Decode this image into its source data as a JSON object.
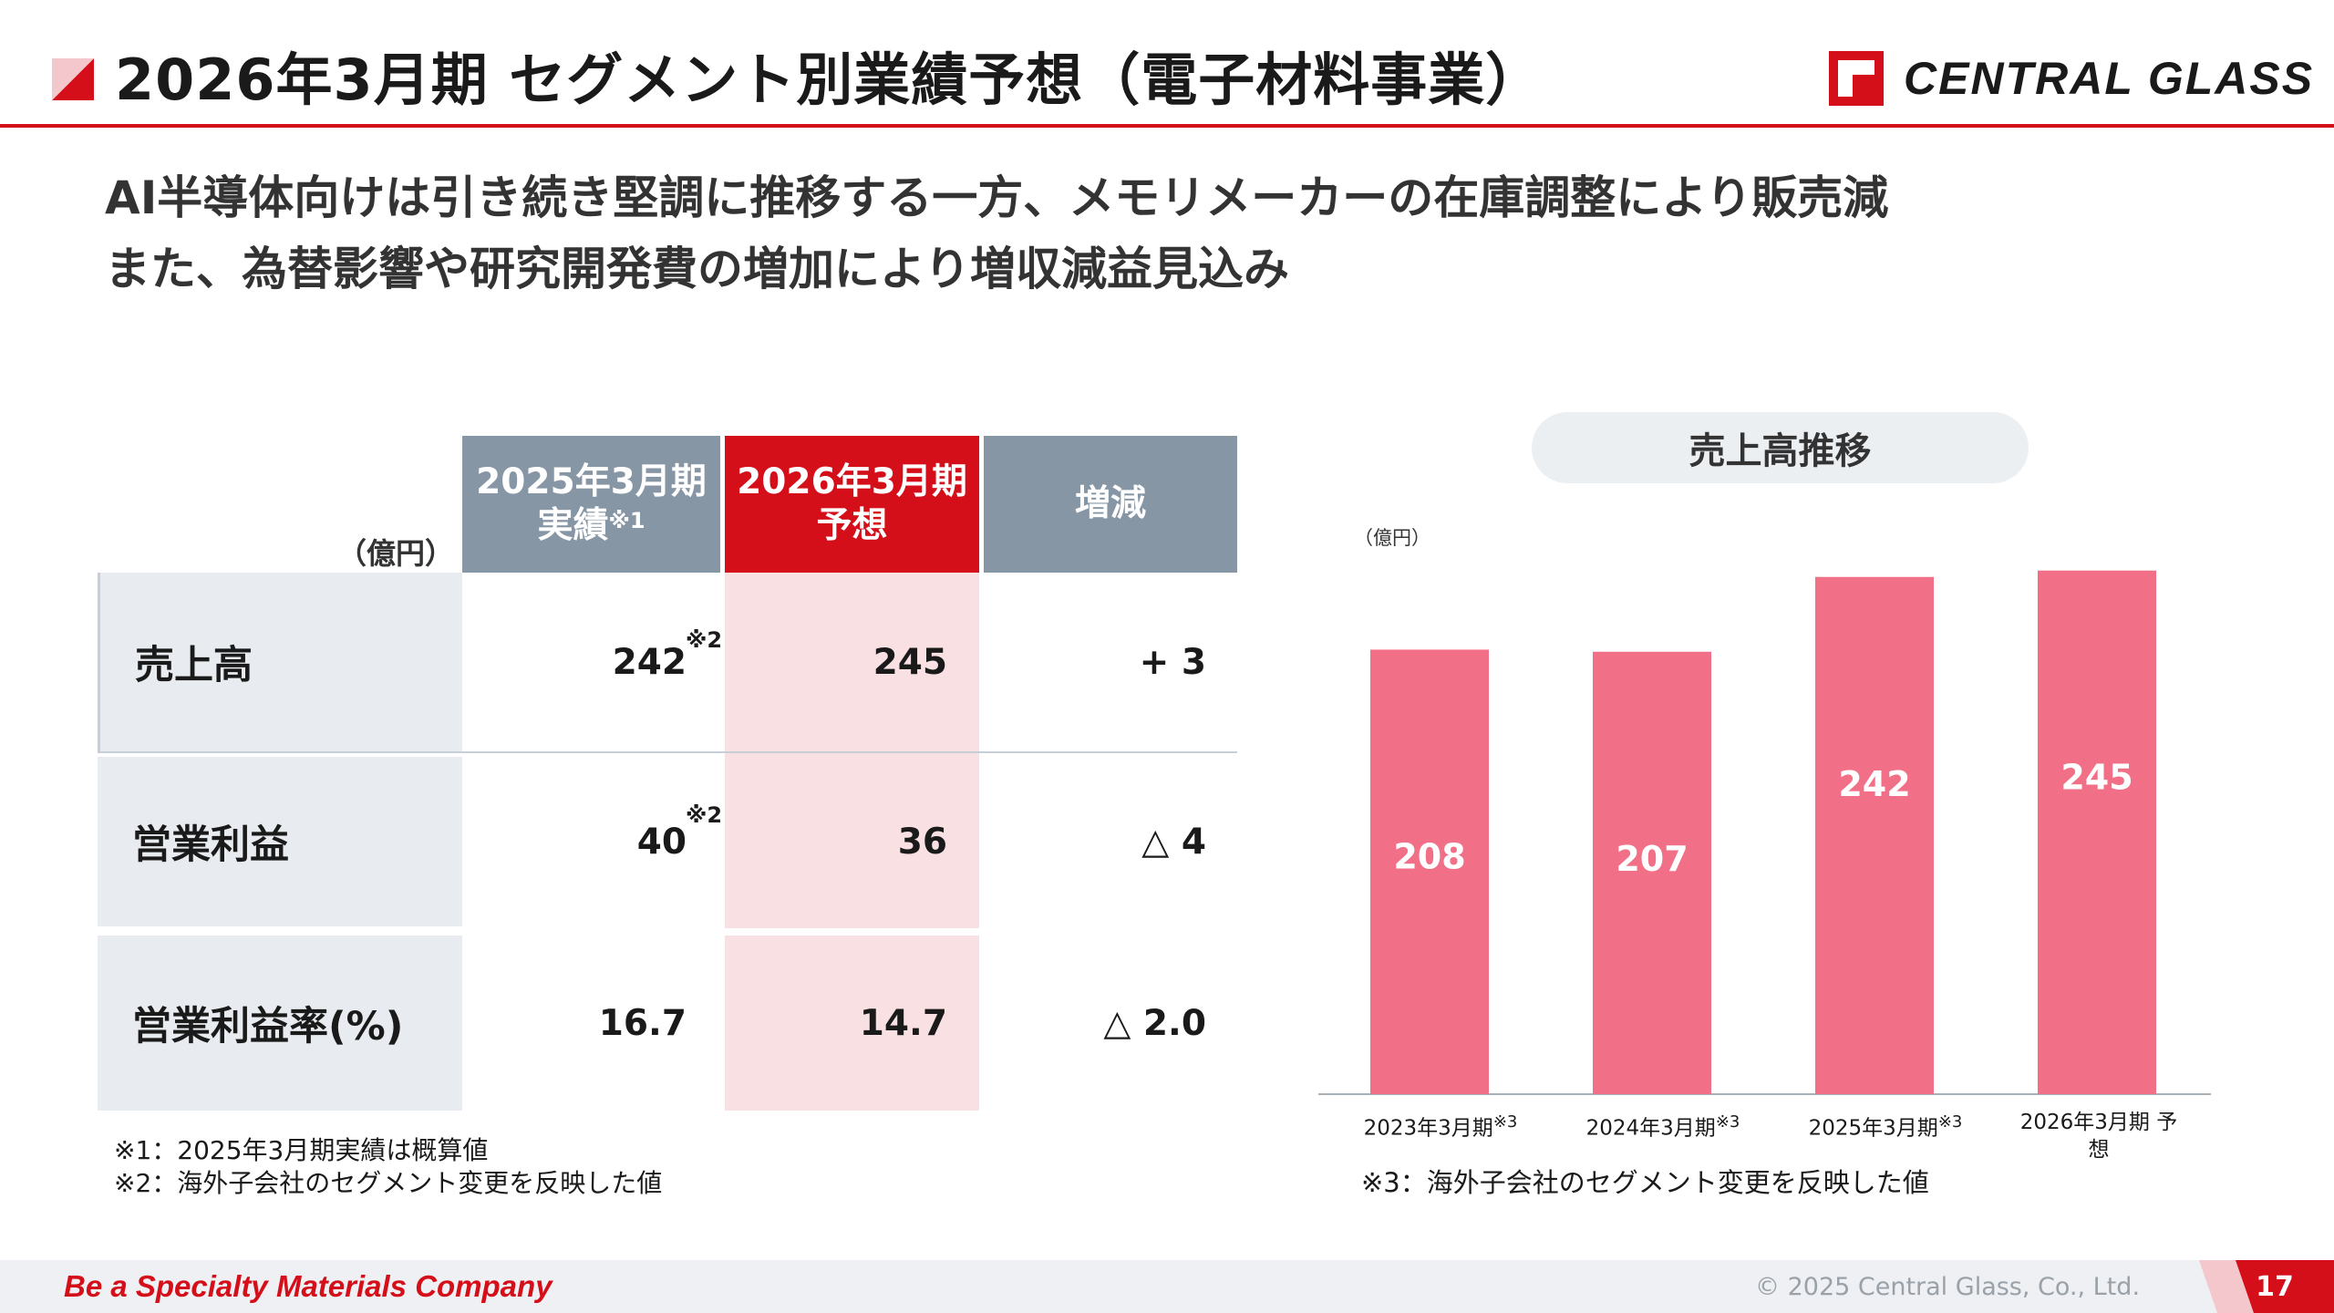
{
  "header": {
    "title": "2026年3月期 セグメント別業績予想（電子材料事業）",
    "logo_text": "CENTRAL GLASS",
    "accent_color": "#d40f1a"
  },
  "subtitle": {
    "line1": "AI半導体向けは引き続き堅調に推移する一方、メモリメーカーの在庫調整により販売減",
    "line2": "また、為替影響や研究開発費の増加により増収減益見込み"
  },
  "table": {
    "unit": "（億円）",
    "col1": {
      "line1": "2025年3月期",
      "line2": "実績",
      "note": "※1"
    },
    "col2": {
      "line1": "2026年3月期",
      "line2": "予想"
    },
    "col3": {
      "label": "増減"
    },
    "rows": [
      {
        "label": "売上高",
        "actual": "242",
        "actual_note": "※2",
        "forecast": "245",
        "change": "+ 3"
      },
      {
        "label": "営業利益",
        "actual": "40",
        "actual_note": "※2",
        "forecast": "36",
        "change": "△ 4"
      },
      {
        "label": "営業利益率(%)",
        "actual": "16.7",
        "forecast": "14.7",
        "change": "△ 2.0"
      }
    ],
    "notes": [
      "※1：2025年3月期実績は概算値",
      "※2：海外子会社のセグメント変更を反映した値"
    ]
  },
  "chart_data": {
    "type": "bar",
    "title": "売上高推移",
    "ylabel": "（億円）",
    "categories": [
      "2023年3月期",
      "2024年3月期",
      "2025年3月期",
      "2026年3月期 予想"
    ],
    "category_notes": [
      "※3",
      "※3",
      "※3",
      ""
    ],
    "values": [
      208,
      207,
      242,
      245
    ],
    "ylim": [
      0,
      250
    ],
    "bar_color": "#f27087",
    "note": "※3：海外子会社のセグメント変更を反映した値"
  },
  "footer": {
    "tagline": "Be a Specialty Materials Company",
    "copyright": "© 2025 Central Glass, Co., Ltd.",
    "page": "17"
  }
}
